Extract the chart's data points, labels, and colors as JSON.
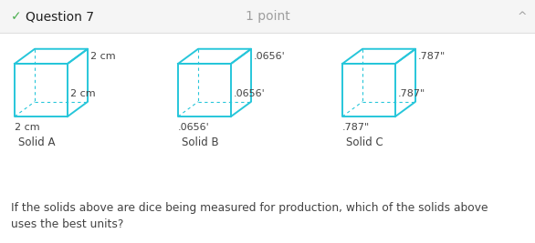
{
  "title": "Question 7",
  "title_check": "✓",
  "points": "1 point",
  "caret": "^",
  "bg_color": "#ffffff",
  "header_bg": "#f5f5f5",
  "header_border": "#e0e0e0",
  "cube_color": "#26c6da",
  "solid_a": {
    "label": "Solid A",
    "dim_top": "2 cm",
    "dim_right": "2 cm",
    "dim_bottom": "2 cm"
  },
  "solid_b": {
    "label": "Solid B",
    "dim_top": ".0656'",
    "dim_right": ".0656'",
    "dim_bottom": ".0656'"
  },
  "solid_c": {
    "label": "Solid C",
    "dim_top": ".787\"",
    "dim_right": ".787\"",
    "dim_bottom": ".787\""
  },
  "question_text": "If the solids above are dice being measured for production, which of the solids above\nuses the best units?",
  "check_color": "#4caf50",
  "title_color": "#212121",
  "header_text_color": "#9e9e9e",
  "text_color": "#424242"
}
